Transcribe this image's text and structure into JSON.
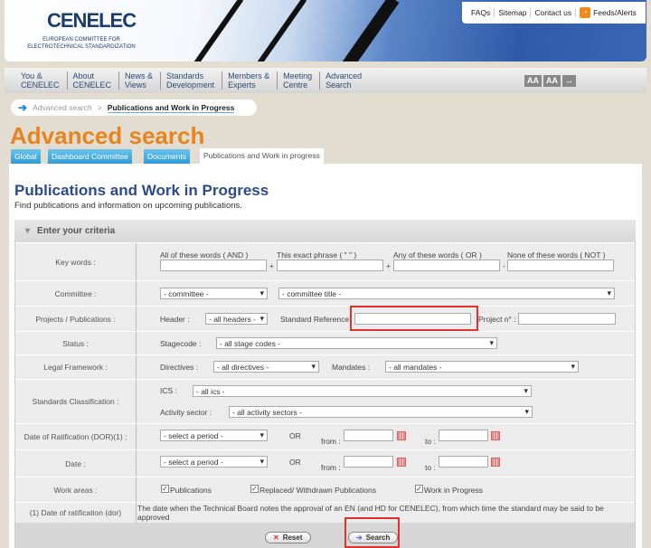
{
  "header": {
    "logo": "CENELEC",
    "logo_sub": "EUROPEAN COMMITTEE FOR ELECTROTECHNICAL STANDARDIZATION",
    "top_links": [
      "FAQs",
      "Sitemap",
      "Contact us",
      "Feeds/Alerts"
    ]
  },
  "nav": [
    [
      "You &",
      "CENELEC"
    ],
    [
      "About",
      "CENELEC"
    ],
    [
      "News &",
      "Views"
    ],
    [
      "Standards",
      "Development"
    ],
    [
      "Members &",
      "Experts"
    ],
    [
      "Meeting",
      "Centre"
    ],
    [
      "Advanced",
      "Search"
    ]
  ],
  "font_controls": [
    "AA",
    "AA",
    "↔"
  ],
  "breadcrumb": {
    "prev": "Advanced search",
    "sep": ">",
    "current": "Publications and Work in Progress"
  },
  "page_title": "Advanced search",
  "tabs": [
    "Global",
    "Dashboard Committee",
    "Documents",
    "Publications and Work in progress"
  ],
  "heading": "Publications and Work in Progress",
  "subheading": "Find publications and information on upcoming publications.",
  "criteria_title": "Enter your criteria",
  "form": {
    "keywords": {
      "label": "Key words :",
      "and": "All of these words ( AND )",
      "phrase": "This exact phrase ( \" \" )",
      "or": "Any of these words ( OR )",
      "not": "None of these words ( NOT )",
      "plus": "+",
      "minus": "-"
    },
    "committee": {
      "label": "Committee :",
      "committee": "- committee -",
      "title": "- committee title -"
    },
    "projects": {
      "label": "Projects / Publications :",
      "header_label": "Header :",
      "header": "- all headers -",
      "stdref_label": "Standard Reference",
      "project_label": "Project n° :"
    },
    "status": {
      "label": "Status :",
      "stage_label": "Stagecode :",
      "stage": "- all stage codes -"
    },
    "legal": {
      "label": "Legal Framework :",
      "dir_label": "Directives :",
      "dir": "- all directives -",
      "mand_label": "Mandates :",
      "mand": "- all mandates -"
    },
    "classification": {
      "label": "Standards Classification :",
      "ics_label": "ICS :",
      "ics": "- all ics -",
      "sector_label": "Activity sector :",
      "sector": "- all activity sectors -"
    },
    "dor": {
      "label": "Date of Ratification (DOR)(1) :",
      "period": "- select a period -",
      "or": "OR",
      "from": "from :",
      "to": "to :"
    },
    "date": {
      "label": "Date :",
      "period": "- select a period -",
      "or": "OR",
      "from": "from :",
      "to": "to :"
    },
    "work": {
      "label": "Work areas :",
      "items": [
        "Publications",
        "Replaced/ Withdrawn Publications",
        "Work in Progress"
      ],
      "checked": [
        true,
        true,
        true
      ]
    },
    "footnote": {
      "label": "(1) Date of ratification (dor)",
      "text": "The date when the Technical Board notes the approval of an EN (and HD for CENELEC), from which time the standard may be said to be approved"
    }
  },
  "buttons": {
    "reset": "Reset",
    "search": "Search"
  },
  "colors": {
    "accent_orange": "#e8841e",
    "heading_blue": "#2e4a8a",
    "tab_blue": "#2d9bd4",
    "highlight": "#e03030"
  }
}
